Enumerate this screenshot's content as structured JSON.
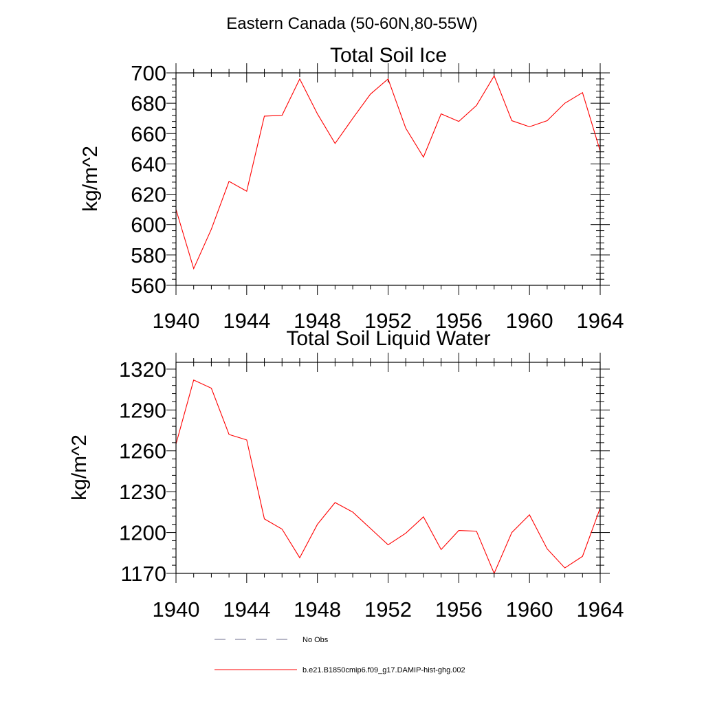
{
  "suptitle": "Eastern Canada (50-60N,80-55W)",
  "colors": {
    "series": "#ff0000",
    "axis": "#000000",
    "no_obs": "#6e6e8c"
  },
  "chart_data": [
    {
      "type": "line",
      "title": "Total Soil Ice",
      "xlabel": "",
      "ylabel": "kg/m^2",
      "xlim": [
        1940,
        1964
      ],
      "ylim": [
        560,
        700
      ],
      "xticks": [
        1940,
        1944,
        1948,
        1952,
        1956,
        1960,
        1964
      ],
      "yticks": [
        560,
        580,
        600,
        620,
        640,
        660,
        680,
        700
      ],
      "grid": false,
      "series": [
        {
          "name": "b.e21.B1850cmip6.f09_g17.DAMIP-hist-ghg.002",
          "x": [
            1940,
            1941,
            1942,
            1943,
            1944,
            1945,
            1946,
            1947,
            1948,
            1949,
            1950,
            1951,
            1952,
            1953,
            1954,
            1955,
            1956,
            1957,
            1958,
            1959,
            1960,
            1961,
            1962,
            1963,
            1964
          ],
          "y": [
            610,
            571,
            597,
            628.5,
            622,
            671.5,
            672,
            696,
            673,
            653.5,
            670,
            686,
            696,
            663.5,
            644.5,
            673,
            668,
            678.5,
            698,
            668.5,
            664.5,
            668.5,
            680,
            687,
            648.5
          ]
        }
      ]
    },
    {
      "type": "line",
      "title": "Total Soil Liquid Water",
      "xlabel": "",
      "ylabel": "kg/m^2",
      "xlim": [
        1940,
        1964
      ],
      "ylim": [
        1170,
        1325
      ],
      "xticks": [
        1940,
        1944,
        1948,
        1952,
        1956,
        1960,
        1964
      ],
      "yticks": [
        1170,
        1200,
        1230,
        1260,
        1290,
        1320
      ],
      "grid": false,
      "series": [
        {
          "name": "b.e21.B1850cmip6.f09_g17.DAMIP-hist-ghg.002",
          "x": [
            1940,
            1941,
            1942,
            1943,
            1944,
            1945,
            1946,
            1947,
            1948,
            1949,
            1950,
            1951,
            1952,
            1953,
            1954,
            1955,
            1956,
            1957,
            1958,
            1959,
            1960,
            1961,
            1962,
            1963,
            1964
          ],
          "y": [
            1265,
            1312,
            1306,
            1272,
            1268,
            1210,
            1202.5,
            1181.5,
            1206,
            1222,
            1215,
            1203,
            1191,
            1199.5,
            1211.5,
            1187.5,
            1201.5,
            1201,
            1170,
            1200,
            1213,
            1188,
            1174,
            1182.5,
            1218
          ]
        }
      ]
    }
  ],
  "legend": {
    "placement": "bottom",
    "items": [
      {
        "label": "No Obs",
        "style": "dashed"
      },
      {
        "label": "b.e21.B1850cmip6.f09_g17.DAMIP-hist-ghg.002",
        "style": "solid"
      }
    ]
  }
}
